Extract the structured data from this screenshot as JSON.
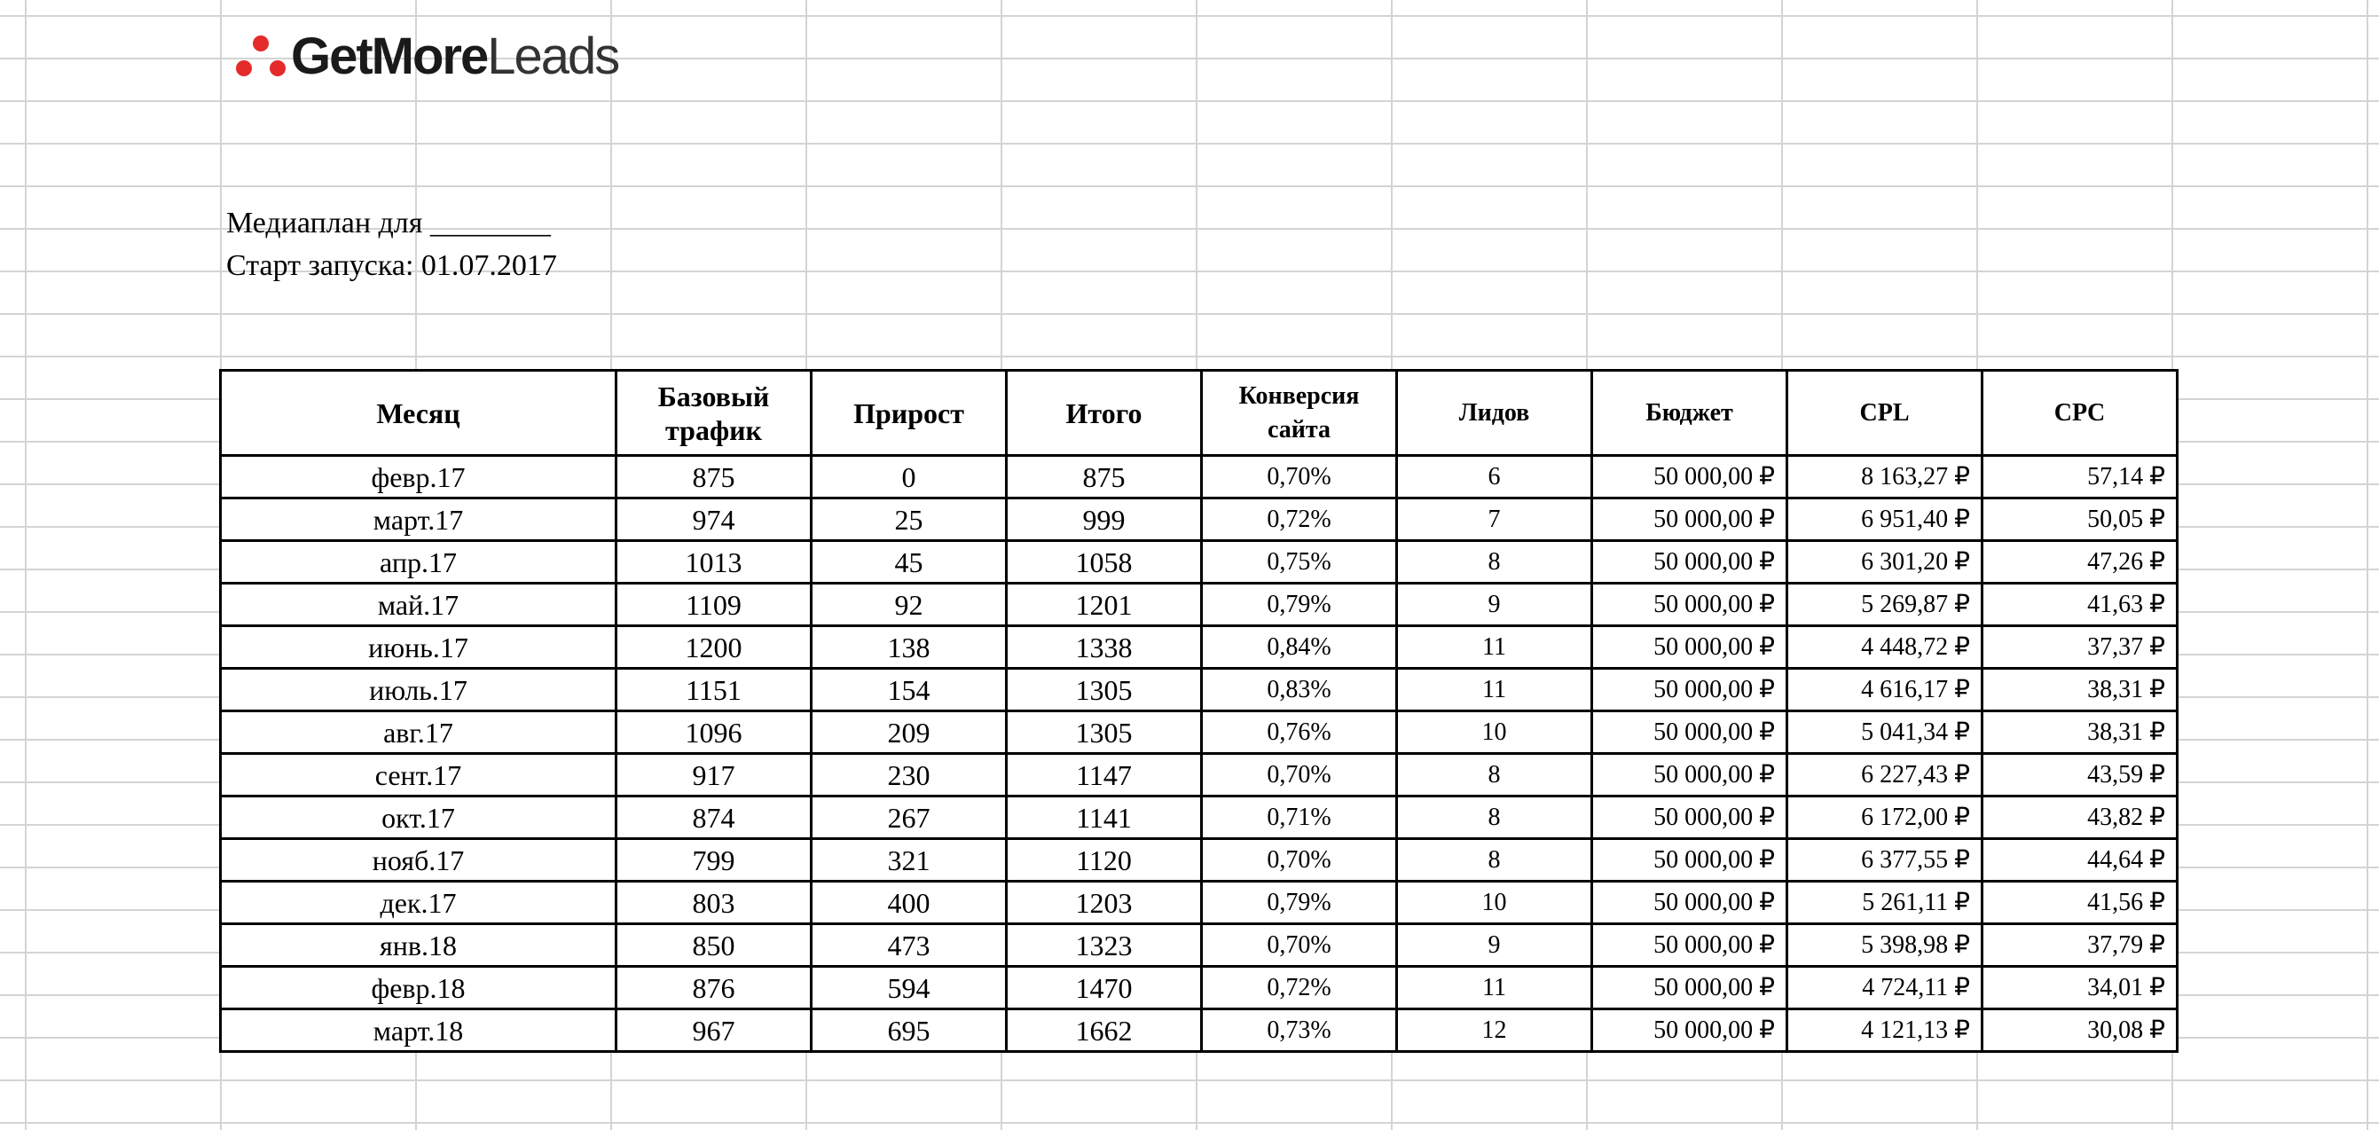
{
  "logo": {
    "part_bold": "GetMore",
    "part_thin": "Leads"
  },
  "header": {
    "title": "Медиаплан для ________",
    "start": "Старт запуска: 01.07.2017"
  },
  "table": {
    "columns": [
      "Месяц",
      "Базовый трафик",
      "Прирост",
      "Итого",
      "Конверсия сайта",
      "Лидов",
      "Бюджет",
      "CPL",
      "CPC"
    ],
    "rows": [
      [
        "февр.17",
        "875",
        "0",
        "875",
        "0,70%",
        "6",
        "50 000,00 ₽",
        "8 163,27 ₽",
        "57,14 ₽"
      ],
      [
        "март.17",
        "974",
        "25",
        "999",
        "0,72%",
        "7",
        "50 000,00 ₽",
        "6 951,40 ₽",
        "50,05 ₽"
      ],
      [
        "апр.17",
        "1013",
        "45",
        "1058",
        "0,75%",
        "8",
        "50 000,00 ₽",
        "6 301,20 ₽",
        "47,26 ₽"
      ],
      [
        "май.17",
        "1109",
        "92",
        "1201",
        "0,79%",
        "9",
        "50 000,00 ₽",
        "5 269,87 ₽",
        "41,63 ₽"
      ],
      [
        "июнь.17",
        "1200",
        "138",
        "1338",
        "0,84%",
        "11",
        "50 000,00 ₽",
        "4 448,72 ₽",
        "37,37 ₽"
      ],
      [
        "июль.17",
        "1151",
        "154",
        "1305",
        "0,83%",
        "11",
        "50 000,00 ₽",
        "4 616,17 ₽",
        "38,31 ₽"
      ],
      [
        "авг.17",
        "1096",
        "209",
        "1305",
        "0,76%",
        "10",
        "50 000,00 ₽",
        "5 041,34 ₽",
        "38,31 ₽"
      ],
      [
        "сент.17",
        "917",
        "230",
        "1147",
        "0,70%",
        "8",
        "50 000,00 ₽",
        "6 227,43 ₽",
        "43,59 ₽"
      ],
      [
        "окт.17",
        "874",
        "267",
        "1141",
        "0,71%",
        "8",
        "50 000,00 ₽",
        "6 172,00 ₽",
        "43,82 ₽"
      ],
      [
        "нояб.17",
        "799",
        "321",
        "1120",
        "0,70%",
        "8",
        "50 000,00 ₽",
        "6 377,55 ₽",
        "44,64 ₽"
      ],
      [
        "дек.17",
        "803",
        "400",
        "1203",
        "0,79%",
        "10",
        "50 000,00 ₽",
        "5 261,11 ₽",
        "41,56 ₽"
      ],
      [
        "янв.18",
        "850",
        "473",
        "1323",
        "0,70%",
        "9",
        "50 000,00 ₽",
        "5 398,98 ₽",
        "37,79 ₽"
      ],
      [
        "февр.18",
        "876",
        "594",
        "1470",
        "0,72%",
        "11",
        "50 000,00 ₽",
        "4 724,11 ₽",
        "34,01 ₽"
      ],
      [
        "март.18",
        "967",
        "695",
        "1662",
        "0,73%",
        "12",
        "50 000,00 ₽",
        "4 121,13 ₽",
        "30,08 ₽"
      ]
    ]
  },
  "colors": {
    "logo_dots": "#e42a2a",
    "grid": "#d4d4d4",
    "border": "#000000"
  }
}
